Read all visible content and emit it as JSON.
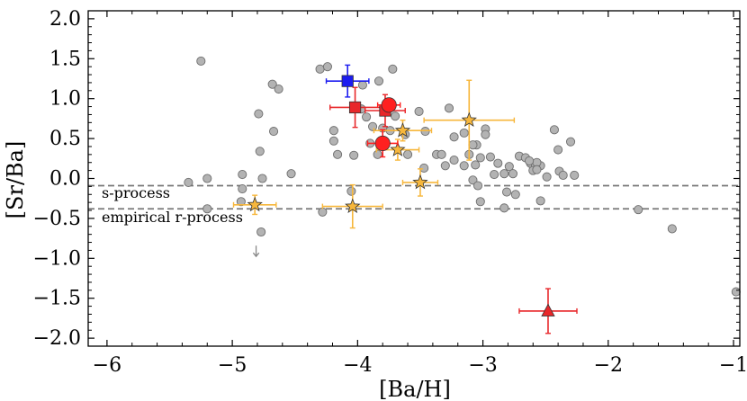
{
  "chart_data": {
    "type": "scatter",
    "xlabel": "[Ba/H]",
    "ylabel": "[Sr/Ba]",
    "xlim": [
      -6.15,
      -0.95
    ],
    "ylim": [
      -2.1,
      2.1
    ],
    "x_ticks": [
      -6,
      -5,
      -4,
      -3,
      -2,
      -1
    ],
    "x_tick_labels": [
      "−6",
      "−5",
      "−4",
      "−3",
      "−2",
      "−1"
    ],
    "y_ticks": [
      -2.0,
      -1.5,
      -1.0,
      -0.5,
      0.0,
      0.5,
      1.0,
      1.5,
      2.0
    ],
    "y_tick_labels": [
      "−2.0",
      "−1.5",
      "−1.0",
      "−0.5",
      "0.0",
      "0.5",
      "1.0",
      "1.5",
      "2.0"
    ],
    "reference_lines": [
      {
        "name": "s-process",
        "label": "s-process",
        "y": -0.09,
        "style": "dashed",
        "color": "#777777"
      },
      {
        "name": "empirical-r-process",
        "label": "empirical r-process",
        "y": -0.38,
        "style": "dashed",
        "color": "#777777"
      }
    ],
    "series": [
      {
        "name": "literature stars",
        "marker": "circle",
        "color": "#b3b3b3",
        "points": [
          [
            -5.25,
            1.47
          ],
          [
            -4.3,
            1.37
          ],
          [
            -4.24,
            1.4
          ],
          [
            -3.72,
            1.37
          ],
          [
            -3.83,
            1.22
          ],
          [
            -3.96,
            1.17
          ],
          [
            -4.68,
            1.18
          ],
          [
            -4.63,
            1.12
          ],
          [
            -3.97,
            0.87
          ],
          [
            -3.93,
            0.77
          ],
          [
            -3.7,
            0.78
          ],
          [
            -3.88,
            0.65
          ],
          [
            -3.8,
            0.63
          ],
          [
            -3.74,
            0.6
          ],
          [
            -3.51,
            0.84
          ],
          [
            -3.27,
            0.88
          ],
          [
            -3.46,
            0.59
          ],
          [
            -3.62,
            0.55
          ],
          [
            -3.9,
            0.44
          ],
          [
            -4.19,
            0.47
          ],
          [
            -4.19,
            0.6
          ],
          [
            -4.16,
            0.3
          ],
          [
            -4.03,
            0.29
          ],
          [
            -3.84,
            0.3
          ],
          [
            -3.6,
            0.3
          ],
          [
            -3.37,
            0.3
          ],
          [
            -3.23,
            0.52
          ],
          [
            -2.98,
            0.62
          ],
          [
            -2.98,
            0.55
          ],
          [
            -3.05,
            0.42
          ],
          [
            -3.08,
            0.42
          ],
          [
            -3.11,
            0.3
          ],
          [
            -3.23,
            0.23
          ],
          [
            -3.15,
            0.16
          ],
          [
            -3.3,
            0.16
          ],
          [
            -3.02,
            0.26
          ],
          [
            -2.94,
            0.27
          ],
          [
            -2.88,
            0.19
          ],
          [
            -2.79,
            0.15
          ],
          [
            -2.76,
            0.06
          ],
          [
            -2.71,
            0.28
          ],
          [
            -2.66,
            0.26
          ],
          [
            -2.62,
            0.19
          ],
          [
            -2.54,
            0.16
          ],
          [
            -2.49,
            0.02
          ],
          [
            -2.39,
            0.09
          ],
          [
            -2.36,
            0.04
          ],
          [
            -2.27,
            0.04
          ],
          [
            -2.4,
            0.36
          ],
          [
            -2.3,
            0.46
          ],
          [
            -2.58,
            0.16
          ],
          [
            -2.91,
            0.05
          ],
          [
            -2.6,
            0.1
          ],
          [
            -2.57,
            0.2
          ],
          [
            -2.63,
            0.22
          ],
          [
            -2.83,
            0.06
          ],
          [
            -2.57,
            0.11
          ],
          [
            -3.08,
            -0.02
          ],
          [
            -3.04,
            -0.09
          ],
          [
            -2.81,
            -0.17
          ],
          [
            -2.74,
            -0.2
          ],
          [
            -2.54,
            -0.28
          ],
          [
            -2.83,
            -0.37
          ],
          [
            -3.02,
            -0.29
          ],
          [
            -2.43,
            0.61
          ],
          [
            -4.79,
            0.81
          ],
          [
            -4.78,
            0.34
          ],
          [
            -4.67,
            0.59
          ],
          [
            -4.53,
            0.06
          ],
          [
            -4.92,
            0.05
          ],
          [
            -4.76,
            0.0
          ],
          [
            -5.2,
            0.0
          ],
          [
            -5.35,
            -0.05
          ],
          [
            -4.92,
            -0.13
          ],
          [
            -4.93,
            -0.29
          ],
          [
            -5.2,
            -0.38
          ],
          [
            -4.28,
            -0.42
          ],
          [
            -4.05,
            -0.16
          ],
          [
            -4.77,
            -0.67
          ],
          [
            -1.76,
            -0.39
          ],
          [
            -1.49,
            -0.63
          ],
          [
            -0.98,
            -1.42
          ],
          [
            -3.47,
            0.13
          ],
          [
            -3.33,
            0.3
          ],
          [
            -3.15,
            0.57
          ],
          [
            -3.06,
            0.17
          ]
        ]
      },
      {
        "name": "upper limit",
        "marker": "arrow-down",
        "color": "#888888",
        "points": [
          [
            -4.81,
            -0.92
          ]
        ]
      },
      {
        "name": "orange stars",
        "marker": "star",
        "color": "#f7b73c",
        "points": [
          {
            "x": -3.64,
            "y": 0.6,
            "xerr": 0.23,
            "yerr": 0.13
          },
          {
            "x": -3.68,
            "y": 0.36,
            "xerr": 0.17,
            "yerr": 0.13
          },
          {
            "x": -3.11,
            "y": 0.73,
            "xerr": 0.36,
            "yerr": 0.5
          },
          {
            "x": -3.5,
            "y": -0.05,
            "xerr": 0.14,
            "yerr": 0.17
          },
          {
            "x": -4.04,
            "y": -0.35,
            "xerr": 0.24,
            "yerr": 0.27
          },
          {
            "x": -4.82,
            "y": -0.33,
            "xerr": 0.17,
            "yerr": 0.12
          }
        ]
      },
      {
        "name": "red squares",
        "marker": "square",
        "color": "#e8272a",
        "points": [
          {
            "x": -4.02,
            "y": 0.89,
            "xerr": 0.2,
            "yerr": 0.25
          },
          {
            "x": -3.78,
            "y": 0.85,
            "xerr": 0.16,
            "yerr": 0.2
          }
        ]
      },
      {
        "name": "red circles",
        "marker": "big-circle",
        "color": "#ff2020",
        "points": [
          {
            "x": -3.75,
            "y": 0.92,
            "xerr": 0.09,
            "yerr": 0.08
          },
          {
            "x": -3.8,
            "y": 0.44,
            "xerr": 0.12,
            "yerr": 0.17
          }
        ]
      },
      {
        "name": "blue square",
        "marker": "square",
        "color": "#1c1cf0",
        "points": [
          {
            "x": -4.08,
            "y": 1.22,
            "xerr": 0.17,
            "yerr": 0.2
          }
        ]
      },
      {
        "name": "red triangle",
        "marker": "triangle",
        "color": "#e8272a",
        "points": [
          {
            "x": -2.48,
            "y": -1.66,
            "xerr": 0.23,
            "yerr": 0.28
          }
        ]
      }
    ]
  }
}
